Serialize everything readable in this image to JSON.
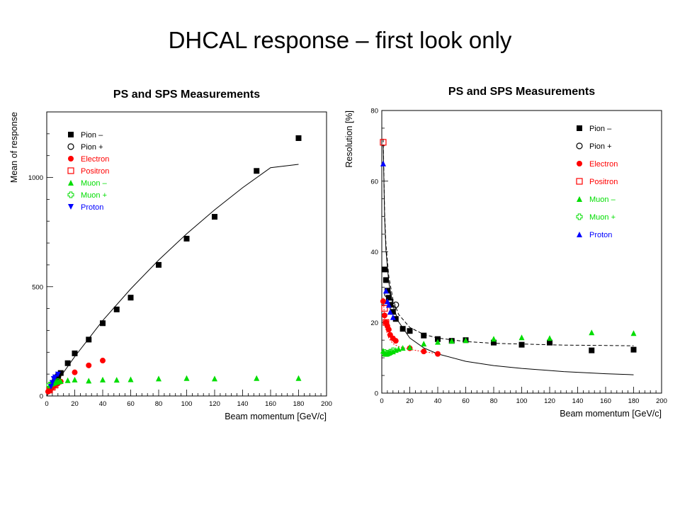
{
  "slide": {
    "title": "DHCAL response – first look only"
  },
  "colors": {
    "pion_minus": "#000000",
    "pion_plus": "#000000",
    "electron": "#ff0000",
    "positron": "#ff0000",
    "muon_minus": "#00dd00",
    "muon_plus": "#00dd00",
    "proton": "#0000ff"
  },
  "chart_data": [
    {
      "type": "scatter",
      "title": "PS and SPS Measurements",
      "xlabel": "Beam momentum [GeV/c]",
      "ylabel": "Mean of response",
      "xlim": [
        0,
        200
      ],
      "ylim": [
        0,
        1300
      ],
      "xticks": [
        0,
        20,
        40,
        60,
        80,
        100,
        120,
        140,
        160,
        180,
        200
      ],
      "yticks": [
        0,
        500,
        1000
      ],
      "grid": false,
      "legend_position": "top-left",
      "series": [
        {
          "name": "Pion –",
          "marker": "square-filled",
          "color": "#000000",
          "x": [
            2,
            4,
            6,
            8,
            10,
            15,
            20,
            30,
            40,
            50,
            60,
            80,
            100,
            120,
            150,
            180
          ],
          "y": [
            30,
            50,
            70,
            90,
            105,
            150,
            195,
            258,
            333,
            396,
            450,
            600,
            720,
            820,
            1030,
            1180
          ]
        },
        {
          "name": "Pion +",
          "marker": "circle-open",
          "color": "#000000",
          "x": [
            4,
            6,
            8
          ],
          "y": [
            52,
            72,
            88
          ]
        },
        {
          "name": "Electron",
          "marker": "circle-filled",
          "color": "#ff0000",
          "x": [
            1,
            2,
            3,
            4,
            5,
            6,
            8,
            10,
            20,
            30,
            40
          ],
          "y": [
            20,
            28,
            34,
            40,
            46,
            50,
            58,
            66,
            108,
            140,
            162
          ]
        },
        {
          "name": "Positron",
          "marker": "square-open",
          "color": "#ff0000",
          "x": [
            2,
            4,
            6
          ],
          "y": [
            27,
            40,
            50
          ]
        },
        {
          "name": "Muon –",
          "marker": "triangle-up-filled",
          "color": "#00dd00",
          "x": [
            2,
            3,
            4,
            5,
            6,
            8,
            10,
            15,
            20,
            30,
            40,
            50,
            60,
            80,
            100,
            120,
            150,
            180
          ],
          "y": [
            48,
            55,
            58,
            60,
            63,
            66,
            68,
            72,
            75,
            70,
            75,
            74,
            76,
            80,
            82,
            80,
            82,
            82
          ]
        },
        {
          "name": "Muon +",
          "marker": "cross-open",
          "color": "#00dd00",
          "x": [
            2,
            4,
            6,
            8
          ],
          "y": [
            50,
            58,
            62,
            66
          ]
        },
        {
          "name": "Proton",
          "marker": "triangle-down-filled",
          "color": "#0000ff",
          "x": [
            3,
            4,
            5,
            6,
            8
          ],
          "y": [
            42,
            60,
            78,
            85,
            98
          ]
        }
      ],
      "fit": {
        "style": "solid",
        "color": "#000000",
        "x": [
          0,
          20,
          40,
          60,
          80,
          100,
          120,
          140,
          160,
          180
        ],
        "y": [
          0,
          180,
          345,
          490,
          622,
          742,
          852,
          953,
          1045,
          1060
        ]
      }
    },
    {
      "type": "scatter",
      "title": "PS and SPS Measurements",
      "xlabel": "Beam momentum [GeV/c]",
      "ylabel": "Resolution [%]",
      "xlim": [
        0,
        200
      ],
      "ylim": [
        0,
        80
      ],
      "xticks": [
        0,
        20,
        40,
        60,
        80,
        100,
        120,
        140,
        160,
        180,
        200
      ],
      "yticks": [
        0,
        20,
        40,
        60,
        80
      ],
      "grid": false,
      "legend_position": "top-right",
      "series": [
        {
          "name": "Pion –",
          "marker": "square-filled",
          "color": "#000000",
          "x": [
            2,
            3,
            4,
            5,
            6,
            8,
            10,
            15,
            20,
            30,
            40,
            50,
            60,
            80,
            100,
            120,
            150,
            180
          ],
          "y": [
            35,
            32,
            29,
            27,
            25,
            23,
            21,
            18.2,
            17.6,
            16.3,
            15.3,
            14.8,
            15,
            14.3,
            13.7,
            14.3,
            12.1,
            12.3
          ]
        },
        {
          "name": "Pion +",
          "marker": "circle-open",
          "color": "#000000",
          "x": [
            4,
            6,
            8,
            10
          ],
          "y": [
            28,
            26,
            24,
            25
          ]
        },
        {
          "name": "Electron",
          "marker": "circle-filled",
          "color": "#ff0000",
          "x": [
            1,
            2,
            3,
            4,
            5,
            6,
            8,
            10,
            20,
            30,
            40
          ],
          "y": [
            26,
            22,
            20,
            19,
            18,
            16.5,
            15.5,
            14.8,
            12.7,
            11.8,
            11.1
          ]
        },
        {
          "name": "Positron",
          "marker": "square-open",
          "color": "#ff0000",
          "x": [
            1,
            2,
            3
          ],
          "y": [
            71,
            24,
            20
          ]
        },
        {
          "name": "Muon –",
          "marker": "triangle-up-filled",
          "color": "#00dd00",
          "x": [
            1,
            2,
            3,
            4,
            5,
            6,
            8,
            10,
            12,
            15,
            20,
            30,
            40,
            50,
            60,
            80,
            100,
            120,
            150,
            180
          ],
          "y": [
            12,
            11.2,
            11.1,
            11.2,
            11.4,
            11.6,
            11.8,
            12.2,
            12.5,
            12.8,
            13,
            14,
            14.5,
            14.8,
            15,
            15.4,
            15.8,
            15.6,
            17.2,
            17
          ]
        },
        {
          "name": "Muon +",
          "marker": "cross-open",
          "color": "#00dd00",
          "x": [
            2,
            4,
            6,
            8
          ],
          "y": [
            11.5,
            11.3,
            11.6,
            12
          ]
        },
        {
          "name": "Proton",
          "marker": "triangle-up-filled",
          "color": "#0000ff",
          "x": [
            1,
            3,
            4,
            5,
            6,
            8
          ],
          "y": [
            65,
            29,
            26,
            25,
            23,
            21.5
          ]
        }
      ],
      "fits": [
        {
          "style": "solid",
          "color": "#000000",
          "x": [
            1,
            2,
            3,
            5,
            8,
            12,
            20,
            30,
            40,
            60,
            80,
            100,
            130,
            160,
            180
          ],
          "y": [
            70,
            49.5,
            40.4,
            31.3,
            24.7,
            20.2,
            15.6,
            12.8,
            11.1,
            9,
            7.8,
            7,
            6.1,
            5.5,
            5.2
          ]
        },
        {
          "style": "dashed",
          "color": "#000000",
          "x": [
            1,
            2,
            3,
            5,
            8,
            12,
            20,
            30,
            40,
            60,
            80,
            100,
            130,
            160,
            180
          ],
          "y": [
            72,
            51,
            42,
            33,
            26.5,
            22.3,
            18.6,
            16.6,
            15.6,
            14.6,
            14.1,
            13.9,
            13.6,
            13.5,
            13.4
          ]
        },
        {
          "style": "dotted",
          "color": "#ff0000",
          "x": [
            1,
            2,
            3,
            5,
            8,
            12,
            20,
            30,
            40
          ],
          "y": [
            27,
            21,
            18,
            15.5,
            14,
            13.2,
            12.4,
            11.7,
            11.2
          ]
        }
      ]
    }
  ]
}
